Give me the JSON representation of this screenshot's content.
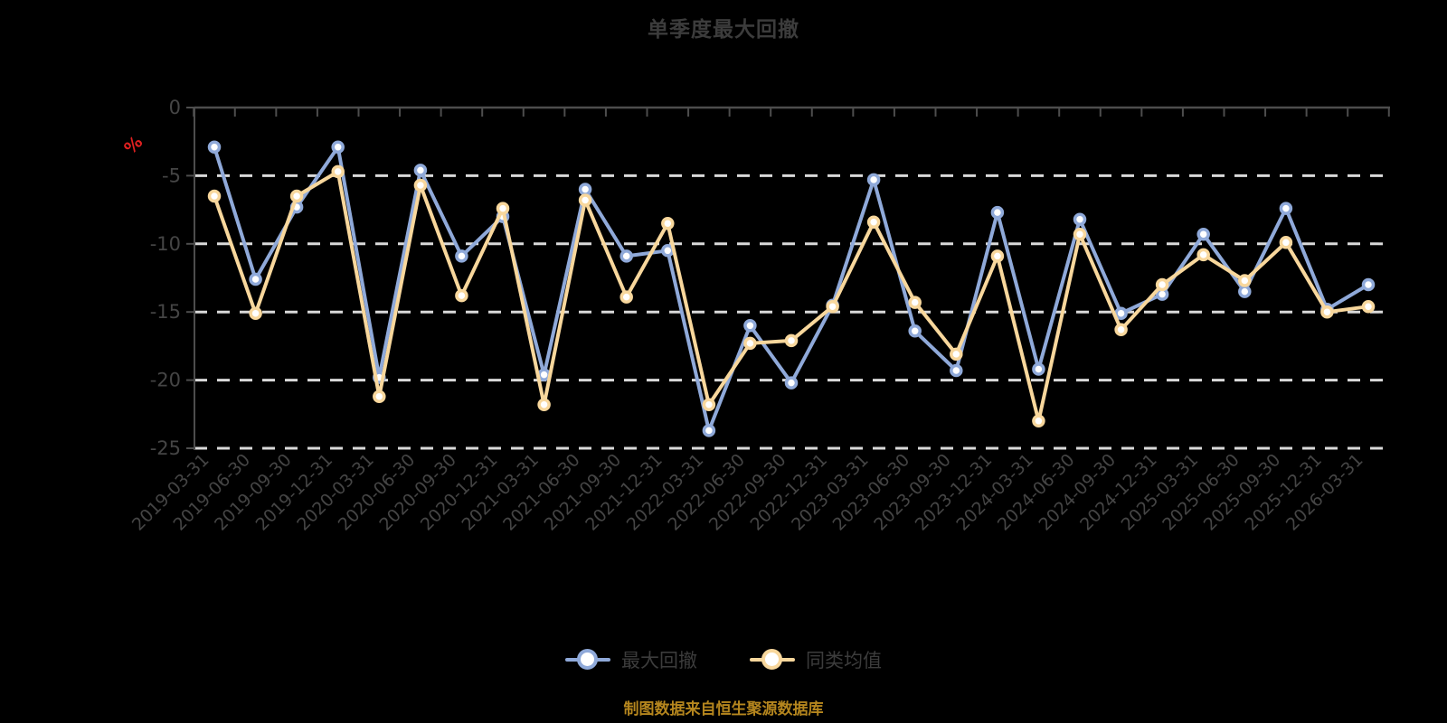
{
  "title": {
    "text": "单季度最大回撤"
  },
  "source_note": {
    "text": "制图数据来自恒生聚源数据库"
  },
  "y_axis": {
    "unit_label": "%",
    "unit_label_color": "#e02020",
    "tick_values": [
      0,
      -5,
      -10,
      -15,
      -20,
      -25
    ],
    "tick_labels": [
      "0",
      "-5",
      "-10",
      "-15",
      "-20",
      "-25"
    ]
  },
  "colors": {
    "background": "#000000",
    "axis_line": "#4d4d4d",
    "grid_line": "#d9d9d9",
    "axis_text": "#454545",
    "title_text": "#3c3c3c",
    "source_text": "#b5861e"
  },
  "chart_data": {
    "type": "line",
    "title": "单季度最大回撤",
    "xlabel": "",
    "ylabel": "%",
    "ylim": [
      -25,
      0
    ],
    "y_ticks": [
      0,
      -5,
      -10,
      -15,
      -20,
      -25
    ],
    "grid": "horizontal-dashed",
    "legend_position": "bottom",
    "categories": [
      "2019-03-31",
      "2019-06-30",
      "2019-09-30",
      "2019-12-31",
      "2020-03-31",
      "2020-06-30",
      "2020-09-30",
      "2020-12-31",
      "2021-03-31",
      "2021-06-30",
      "2021-09-30",
      "2021-12-31",
      "2022-03-31",
      "2022-06-30",
      "2022-09-30",
      "2022-12-31",
      "2023-03-31",
      "2023-06-30",
      "2023-09-30",
      "2023-12-31",
      "2024-03-31",
      "2024-06-30",
      "2024-09-30",
      "2024-12-31",
      "2025-03-31",
      "2025-06-30",
      "2025-09-30",
      "2025-12-31",
      "2026-03-31"
    ],
    "series": [
      {
        "name": "最大回撤",
        "key": "max-drawdown",
        "color": "#8fa9d9",
        "marker_fill": "#ffffff",
        "values": [
          -2.9,
          -12.6,
          -7.3,
          -2.9,
          -19.8,
          -4.6,
          -10.9,
          -8.0,
          -19.6,
          -6.0,
          -10.9,
          -10.5,
          -23.7,
          -16.0,
          -20.2,
          -14.5,
          -5.3,
          -16.4,
          -19.3,
          -7.7,
          -19.2,
          -8.2,
          -15.1,
          -13.7,
          -9.3,
          -13.5,
          -7.4,
          -14.8,
          -13.0
        ]
      },
      {
        "name": "同类均值",
        "key": "category-average",
        "color": "#f8d79c",
        "marker_fill": "#ffffff",
        "values": [
          -6.5,
          -15.1,
          -6.5,
          -4.7,
          -21.2,
          -5.7,
          -13.8,
          -7.4,
          -21.8,
          -6.8,
          -13.9,
          -8.5,
          -21.8,
          -17.3,
          -17.1,
          -14.6,
          -8.4,
          -14.3,
          -18.1,
          -10.9,
          -23.0,
          -9.3,
          -16.3,
          -13.0,
          -10.8,
          -12.7,
          -9.9,
          -15.0,
          -14.6
        ]
      }
    ]
  }
}
